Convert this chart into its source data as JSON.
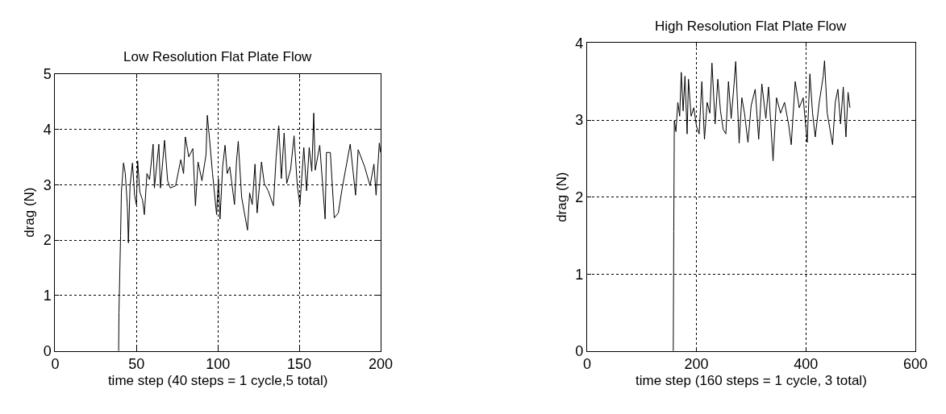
{
  "chart_data": [
    {
      "type": "line",
      "title": "Low Resolution Flat Plate Flow",
      "xlabel": "time step (40 steps = 1 cycle,5 total)",
      "ylabel": "drag (N)",
      "xlim": [
        0,
        200
      ],
      "ylim": [
        0,
        5
      ],
      "xticks": [
        0,
        50,
        100,
        150,
        200
      ],
      "yticks": [
        0,
        1,
        2,
        3,
        4,
        5
      ],
      "grid": true,
      "color": "#000000",
      "x": [
        39.0,
        39.2,
        40.2,
        40.7,
        42.0,
        43.1,
        44.4,
        45.0,
        46.0,
        47.5,
        48.8,
        49.9,
        50.7,
        52.0,
        53.7,
        54.8,
        56.4,
        58.0,
        60.2,
        61.0,
        63.7,
        64.7,
        67.2,
        69.1,
        70.7,
        74.0,
        77.2,
        78.9,
        80.0,
        82.1,
        84.6,
        86.2,
        87.8,
        90.2,
        92.7,
        93.5,
        94.8,
        96.7,
        99.2,
        100.3,
        101.3,
        102.9,
        104.4,
        105.7,
        107.3,
        110.2,
        111.4,
        112.5,
        114.6,
        118.2,
        119.5,
        121.1,
        122.8,
        124.1,
        126.8,
        128.5,
        130.9,
        134.1,
        135.8,
        137.4,
        139.0,
        140.7,
        142.3,
        144.7,
        146.8,
        148.8,
        150.4,
        152.8,
        154.5,
        156.1,
        157.7,
        158.9,
        159.8,
        162.6,
        165.9,
        166.7,
        169.1,
        171.5,
        174.0,
        176.4,
        181.3,
        184.6,
        186.2,
        190.2,
        193.5,
        195.9,
        197.2,
        199.2,
        200
      ],
      "values": [
        0,
        0.7,
        2.08,
        2.87,
        3.39,
        3.2,
        2.59,
        1.95,
        2.98,
        3.39,
        2.81,
        2.64,
        3.43,
        2.87,
        2.72,
        2.46,
        3.2,
        3.09,
        3.73,
        2.94,
        3.73,
        2.94,
        3.8,
        3.07,
        2.94,
        2.98,
        3.45,
        3.2,
        3.86,
        3.5,
        3.65,
        2.62,
        3.41,
        3.07,
        3.54,
        4.25,
        3.84,
        3.2,
        2.46,
        3.11,
        2.38,
        3.32,
        3.71,
        3.2,
        3.32,
        2.64,
        3.41,
        3.78,
        2.77,
        2.18,
        2.85,
        2.64,
        3.37,
        2.49,
        3.41,
        3.02,
        2.89,
        2.62,
        3.5,
        4.06,
        3.11,
        3.93,
        3.02,
        3.28,
        3.88,
        2.98,
        2.64,
        3.67,
        2.89,
        3.67,
        3.24,
        4.29,
        3.26,
        3.71,
        2.38,
        3.58,
        3.58,
        2.4,
        2.49,
        2.94,
        3.73,
        2.81,
        3.63,
        3.32,
        2.98,
        3.37,
        2.81,
        3.75,
        3.58
      ]
    },
    {
      "type": "line",
      "title": "High Resolution Flat Plate Flow",
      "xlabel": "time step (160 steps = 1 cycle, 3 total)",
      "ylabel": "drag (N)",
      "xlim": [
        0,
        600
      ],
      "ylim": [
        0,
        4
      ],
      "xticks": [
        0,
        200,
        400,
        600
      ],
      "yticks": [
        0,
        1,
        2,
        3,
        4
      ],
      "grid": true,
      "color": "#000000",
      "x": [
        157.6,
        158.5,
        159.5,
        162.4,
        165.9,
        169.3,
        172.2,
        175.6,
        179.0,
        182.9,
        185.4,
        190.2,
        195.1,
        200,
        204.9,
        209.8,
        214.6,
        219.5,
        224.4,
        228.3,
        234.1,
        239.0,
        243.9,
        248.8,
        253.7,
        258.5,
        263.4,
        268.3,
        271.7,
        275.6,
        278.0,
        282.9,
        287.8,
        294.1,
        300.0,
        307.3,
        313.7,
        319.5,
        326.8,
        331.7,
        340,
        346.3,
        353.7,
        361.0,
        368.3,
        373.2,
        380.5,
        387.8,
        395.1,
        402.4,
        407.3,
        412.2,
        417.1,
        424.4,
        431.7,
        434.1,
        439.0,
        448.8,
        453.7,
        458.5,
        463.4,
        468.3,
        473.2,
        477.1,
        480.5
      ],
      "values": [
        0,
        1.55,
        2.99,
        2.85,
        3.23,
        3.05,
        3.62,
        3.12,
        3.57,
        2.82,
        3.53,
        3.05,
        3.16,
        2.92,
        2.82,
        3.5,
        2.75,
        3.23,
        3.09,
        3.74,
        2.95,
        3.53,
        3.12,
        2.88,
        2.82,
        3.5,
        3.02,
        3.43,
        3.76,
        3.12,
        2.7,
        3.29,
        3.09,
        2.71,
        3.19,
        3.4,
        2.75,
        3.47,
        3.02,
        3.43,
        2.47,
        3.29,
        3.09,
        3.23,
        2.95,
        2.68,
        3.5,
        3.16,
        3.29,
        2.71,
        3.6,
        3.09,
        2.78,
        3.23,
        3.57,
        3.77,
        3.09,
        2.68,
        3.23,
        3.4,
        2.95,
        3.43,
        2.78,
        3.36,
        3.16
      ]
    }
  ]
}
